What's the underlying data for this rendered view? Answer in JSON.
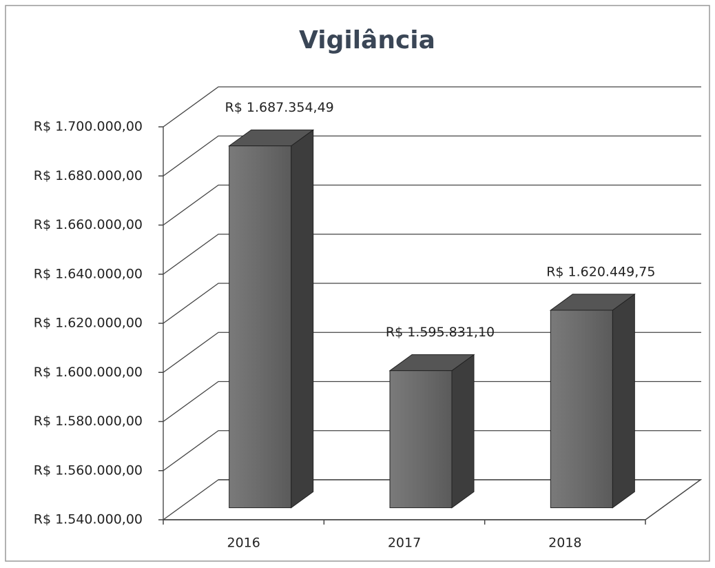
{
  "chart_data": {
    "type": "bar3d",
    "title": "Vigilância",
    "categories": [
      "2016",
      "2017",
      "2018"
    ],
    "values": [
      1687354.49,
      1595831.1,
      1620449.75
    ],
    "value_labels": [
      "R$ 1.687.354,49",
      "R$ 1.595.831,10",
      "R$ 1.620.449,75"
    ],
    "color": "#6b6b6b",
    "ylim": [
      1540000,
      1700000
    ],
    "yticks": [
      {
        "value": 1540000,
        "label": "R$ 1.540.000,00"
      },
      {
        "value": 1560000,
        "label": "R$ 1.560.000,00"
      },
      {
        "value": 1580000,
        "label": "R$ 1.580.000,00"
      },
      {
        "value": 1600000,
        "label": "R$ 1.600.000,00"
      },
      {
        "value": 1620000,
        "label": "R$ 1.620.000,00"
      },
      {
        "value": 1640000,
        "label": "R$ 1.640.000,00"
      },
      {
        "value": 1660000,
        "label": "R$ 1.660.000,00"
      },
      {
        "value": 1680000,
        "label": "R$ 1.680.000,00"
      },
      {
        "value": 1700000,
        "label": "R$ 1.700.000,00"
      }
    ],
    "grid": true
  }
}
